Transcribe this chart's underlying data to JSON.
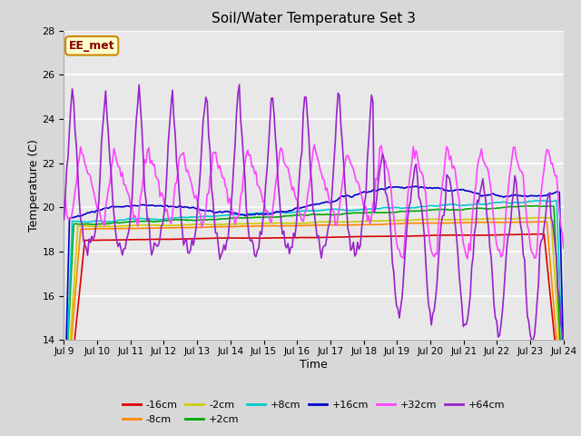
{
  "title": "Soil/Water Temperature Set 3",
  "xlabel": "Time",
  "ylabel": "Temperature (C)",
  "ylim": [
    14,
    28
  ],
  "yticks": [
    14,
    16,
    18,
    20,
    22,
    24,
    26,
    28
  ],
  "xlim_start": 9,
  "xlim_end": 24,
  "xtick_labels": [
    "Jul 9",
    "Jul 10",
    "Jul 11",
    "Jul 12",
    "Jul 13",
    "Jul 14",
    "Jul 15",
    "Jul 16",
    "Jul 17",
    "Jul 18",
    "Jul 19",
    "Jul 20",
    "Jul 21",
    "Jul 22",
    "Jul 23",
    "Jul 24"
  ],
  "xtick_positions": [
    9,
    10,
    11,
    12,
    13,
    14,
    15,
    16,
    17,
    18,
    19,
    20,
    21,
    22,
    23,
    24
  ],
  "fig_bg_color": "#d8d8d8",
  "plot_bg_color": "#e8e8e8",
  "grid_color": "#ffffff",
  "annotation_text": "EE_met",
  "annotation_bg": "#ffffcc",
  "annotation_border": "#cc8800",
  "annotation_text_color": "#880000",
  "series_colors": {
    "-16cm": "#dd0000",
    "-8cm": "#ff8800",
    "-2cm": "#cccc00",
    "+2cm": "#00aa00",
    "+8cm": "#00cccc",
    "+16cm": "#0000cc",
    "+32cm": "#ff44ff",
    "+64cm": "#9922cc"
  },
  "series_lw": 1.2
}
